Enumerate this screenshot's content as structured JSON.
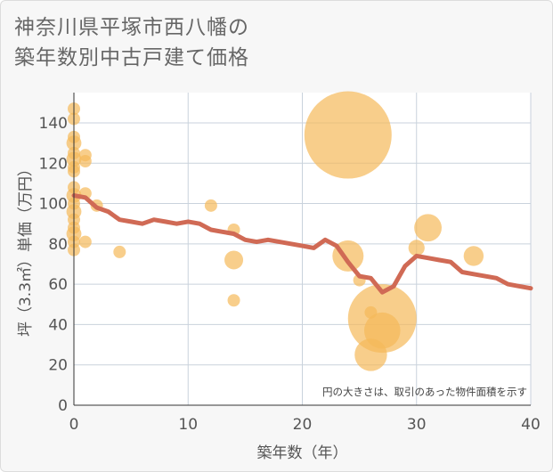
{
  "chart_data": {
    "type": "scatter",
    "title_lines": [
      "神奈川県平塚市西八幡の",
      "築年数別中古戸建て価格"
    ],
    "xlabel": "築年数（年）",
    "ylabel": "坪（3.3㎡）単価（万円）",
    "xlim": [
      0,
      40
    ],
    "ylim": [
      0,
      155
    ],
    "xticks": [
      0,
      10,
      20,
      30,
      40
    ],
    "yticks": [
      0,
      20,
      40,
      60,
      80,
      100,
      120,
      140
    ],
    "note": "円の大きさは、取引のあった物件面積を示す",
    "colors": {
      "bubble": "#f5b95a",
      "line": "#d06a55",
      "grid": "#c9d2dc",
      "plot_bg": "#ffffff"
    },
    "bubbles": [
      {
        "x": 0,
        "y": 147,
        "size": 1
      },
      {
        "x": 0,
        "y": 142,
        "size": 1
      },
      {
        "x": 0,
        "y": 133,
        "size": 1
      },
      {
        "x": 0,
        "y": 130,
        "size": 1.2
      },
      {
        "x": 0,
        "y": 125,
        "size": 1
      },
      {
        "x": 0,
        "y": 122,
        "size": 1.2
      },
      {
        "x": 0,
        "y": 118,
        "size": 1
      },
      {
        "x": 0,
        "y": 116,
        "size": 1
      },
      {
        "x": 0,
        "y": 108,
        "size": 1
      },
      {
        "x": 0,
        "y": 104,
        "size": 1.2
      },
      {
        "x": 0,
        "y": 100,
        "size": 1
      },
      {
        "x": 0,
        "y": 96,
        "size": 1.2
      },
      {
        "x": 0,
        "y": 92,
        "size": 1
      },
      {
        "x": 0,
        "y": 88,
        "size": 1
      },
      {
        "x": 0,
        "y": 85,
        "size": 1.2
      },
      {
        "x": 0,
        "y": 81,
        "size": 1
      },
      {
        "x": 0,
        "y": 77,
        "size": 1
      },
      {
        "x": 1,
        "y": 124,
        "size": 1
      },
      {
        "x": 1,
        "y": 121,
        "size": 1
      },
      {
        "x": 1,
        "y": 105,
        "size": 1
      },
      {
        "x": 1,
        "y": 81,
        "size": 1
      },
      {
        "x": 2,
        "y": 99,
        "size": 1
      },
      {
        "x": 4,
        "y": 76,
        "size": 1
      },
      {
        "x": 12,
        "y": 99,
        "size": 1
      },
      {
        "x": 14,
        "y": 87,
        "size": 1
      },
      {
        "x": 14,
        "y": 72,
        "size": 1.5
      },
      {
        "x": 14,
        "y": 52,
        "size": 1
      },
      {
        "x": 24,
        "y": 134,
        "size": 7
      },
      {
        "x": 24,
        "y": 74,
        "size": 2.5
      },
      {
        "x": 25,
        "y": 62,
        "size": 1
      },
      {
        "x": 26,
        "y": 46,
        "size": 1
      },
      {
        "x": 26,
        "y": 25,
        "size": 2.6
      },
      {
        "x": 27,
        "y": 43,
        "size": 5.5
      },
      {
        "x": 27,
        "y": 37,
        "size": 2.9
      },
      {
        "x": 30,
        "y": 78,
        "size": 1.3
      },
      {
        "x": 31,
        "y": 88,
        "size": 2.2
      },
      {
        "x": 35,
        "y": 74,
        "size": 1.6
      }
    ],
    "trend": {
      "x": [
        0,
        1,
        2,
        3,
        4,
        5,
        6,
        7,
        8,
        9,
        10,
        11,
        12,
        13,
        14,
        15,
        16,
        17,
        18,
        19,
        20,
        21,
        22,
        23,
        24,
        25,
        26,
        27,
        28,
        29,
        30,
        31,
        32,
        33,
        34,
        35,
        36,
        37,
        38,
        39,
        40
      ],
      "y": [
        104,
        103,
        98,
        96,
        92,
        91,
        90,
        92,
        91,
        90,
        91,
        90,
        87,
        86,
        85,
        82,
        81,
        82,
        81,
        80,
        79,
        78,
        82,
        79,
        71,
        64,
        63,
        56,
        59,
        69,
        74,
        73,
        72,
        71,
        66,
        65,
        64,
        63,
        60,
        59,
        58
      ]
    }
  }
}
